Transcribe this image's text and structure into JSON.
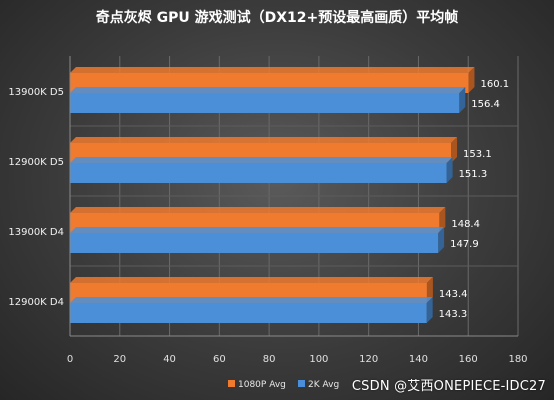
{
  "chart_data": {
    "type": "bar",
    "orientation": "horizontal",
    "title": "奇点灰烬 GPU 游戏测试（DX12+预设最高画质）平均帧",
    "categories": [
      "13900K D5",
      "12900K D5",
      "13900K D4",
      "12900K D4"
    ],
    "series": [
      {
        "name": "1080P Avg",
        "values": [
          160.1,
          153.1,
          148.4,
          143.4
        ],
        "color": "#f07a2e"
      },
      {
        "name": "2K Avg",
        "values": [
          156.4,
          151.3,
          147.9,
          143.3
        ],
        "color": "#4a8fd8"
      }
    ],
    "xlim": [
      0,
      180
    ],
    "xticks": [
      0,
      20,
      40,
      60,
      80,
      100,
      120,
      140,
      160,
      180
    ],
    "grid": true,
    "legend_position": "bottom"
  },
  "watermark": "CSDN @艾西ONEPIECE-IDC27"
}
